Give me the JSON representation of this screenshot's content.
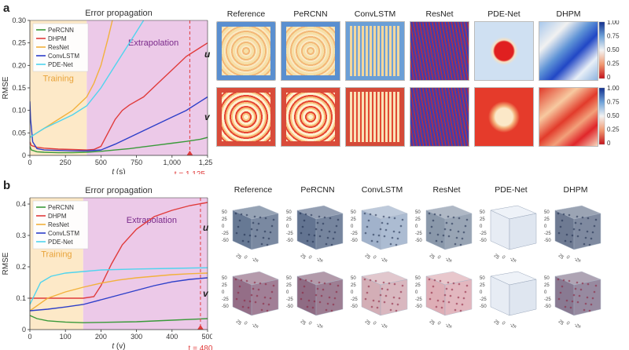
{
  "panel_a": {
    "letter": "a",
    "chart_title": "Error propagation",
    "region_training": "Training",
    "region_extrapolation": "Extrapolation",
    "marker_label": "t = 1,125",
    "columns": [
      "Reference",
      "PeRCNN",
      "ConvLSTM",
      "ResNet",
      "PDE-Net",
      "DHPM"
    ],
    "rows": [
      "u",
      "v"
    ],
    "colorbar_ticks": [
      "1.00",
      "0.75",
      "0.50",
      "0.25",
      "0"
    ]
  },
  "panel_b": {
    "letter": "b",
    "chart_title": "Error propagation",
    "region_training": "Training",
    "region_extrapolation": "Extrapolation",
    "marker_label": "t = 480",
    "columns": [
      "Reference",
      "PeRCNN",
      "ConvLSTM",
      "ResNet",
      "PDE-Net",
      "DHPM"
    ],
    "rows": [
      "u",
      "v"
    ],
    "axis_ticks": [
      "50",
      "25",
      "0",
      "-25",
      "-50"
    ]
  },
  "chart_data": [
    {
      "type": "line",
      "title": "Error propagation",
      "xlabel": "t (s)",
      "ylabel": "RMSE",
      "xlim": [
        0,
        1250
      ],
      "ylim": [
        0,
        0.3
      ],
      "xticks": [
        0,
        250,
        500,
        750,
        1000,
        1250
      ],
      "xtick_labels": [
        "0",
        "250",
        "500",
        "750",
        "1,000",
        "1,250"
      ],
      "yticks": [
        0,
        0.05,
        0.1,
        0.15,
        0.2,
        0.25,
        0.3
      ],
      "ytick_labels": [
        "0",
        "0.05",
        "0.10",
        "0.15",
        "0.20",
        "0.25",
        "0.30"
      ],
      "training_end": 400,
      "marker_x": 1125,
      "legend": "top-left",
      "series": [
        {
          "name": "PeRCNN",
          "color": "#3a9a3a",
          "x": [
            0,
            10,
            50,
            100,
            200,
            300,
            400,
            500,
            600,
            700,
            800,
            900,
            1000,
            1100,
            1200,
            1250
          ],
          "y": [
            0.02,
            0.012,
            0.008,
            0.007,
            0.006,
            0.006,
            0.007,
            0.009,
            0.012,
            0.015,
            0.019,
            0.023,
            0.027,
            0.031,
            0.036,
            0.04
          ]
        },
        {
          "name": "DHPM",
          "color": "#e03b3b",
          "x": [
            0,
            10,
            50,
            100,
            200,
            300,
            400,
            450,
            500,
            550,
            600,
            650,
            700,
            800,
            900,
            1000,
            1100,
            1200,
            1250
          ],
          "y": [
            0.03,
            0.022,
            0.018,
            0.016,
            0.014,
            0.013,
            0.012,
            0.013,
            0.02,
            0.05,
            0.08,
            0.1,
            0.112,
            0.13,
            0.16,
            0.19,
            0.22,
            0.24,
            0.25
          ]
        },
        {
          "name": "ResNet",
          "color": "#f2b13c",
          "x": [
            0,
            50,
            100,
            200,
            300,
            400,
            450,
            500,
            550,
            580
          ],
          "y": [
            0.04,
            0.05,
            0.06,
            0.08,
            0.1,
            0.13,
            0.16,
            0.2,
            0.26,
            0.3
          ]
        },
        {
          "name": "ConvLSTM",
          "color": "#2d3fc9",
          "x": [
            0,
            5,
            20,
            50,
            100,
            200,
            300,
            400,
            500,
            600,
            700,
            800,
            900,
            1000,
            1100,
            1200,
            1250
          ],
          "y": [
            0.12,
            0.08,
            0.03,
            0.015,
            0.012,
            0.011,
            0.01,
            0.01,
            0.012,
            0.025,
            0.04,
            0.055,
            0.07,
            0.085,
            0.1,
            0.12,
            0.13
          ]
        },
        {
          "name": "PDE-Net",
          "color": "#4fd4ee",
          "x": [
            0,
            50,
            100,
            200,
            300,
            400,
            500,
            600,
            700,
            800
          ],
          "y": [
            0.04,
            0.05,
            0.06,
            0.075,
            0.09,
            0.11,
            0.15,
            0.2,
            0.25,
            0.3
          ]
        }
      ]
    },
    {
      "type": "line",
      "title": "Error propagation",
      "xlabel": "t (v)",
      "ylabel": "RMSE",
      "xlim": [
        0,
        500
      ],
      "ylim": [
        0,
        0.42
      ],
      "xticks": [
        0,
        100,
        200,
        300,
        400,
        500
      ],
      "xtick_labels": [
        "0",
        "100",
        "200",
        "300",
        "400",
        "500"
      ],
      "yticks": [
        0,
        0.1,
        0.2,
        0.3,
        0.4
      ],
      "ytick_labels": [
        "0",
        "0.1",
        "0.2",
        "0.3",
        "0.4"
      ],
      "training_end": 150,
      "marker_x": 480,
      "legend": "top-left",
      "series": [
        {
          "name": "PeRCNN",
          "color": "#3a9a3a",
          "x": [
            0,
            20,
            50,
            100,
            150,
            200,
            300,
            400,
            500
          ],
          "y": [
            0.045,
            0.035,
            0.028,
            0.024,
            0.022,
            0.023,
            0.025,
            0.03,
            0.035
          ]
        },
        {
          "name": "DHPM",
          "color": "#e03b3b",
          "x": [
            0,
            50,
            100,
            150,
            180,
            200,
            230,
            260,
            300,
            350,
            400,
            450,
            500
          ],
          "y": [
            0.1,
            0.1,
            0.1,
            0.1,
            0.105,
            0.14,
            0.21,
            0.27,
            0.32,
            0.36,
            0.38,
            0.395,
            0.405
          ]
        },
        {
          "name": "ResNet",
          "color": "#f2b13c",
          "x": [
            0,
            50,
            100,
            150,
            200,
            250,
            300,
            350,
            400,
            450,
            500
          ],
          "y": [
            0.06,
            0.1,
            0.12,
            0.135,
            0.148,
            0.158,
            0.165,
            0.17,
            0.175,
            0.178,
            0.18
          ]
        },
        {
          "name": "ConvLSTM",
          "color": "#2d3fc9",
          "x": [
            0,
            50,
            100,
            150,
            200,
            250,
            300,
            350,
            400,
            450,
            500
          ],
          "y": [
            0.06,
            0.065,
            0.072,
            0.08,
            0.095,
            0.11,
            0.125,
            0.14,
            0.152,
            0.16,
            0.165
          ]
        },
        {
          "name": "PDE-Net",
          "color": "#4fd4ee",
          "x": [
            0,
            30,
            60,
            100,
            150,
            200,
            300,
            400,
            500
          ],
          "y": [
            0.08,
            0.15,
            0.17,
            0.18,
            0.185,
            0.19,
            0.193,
            0.195,
            0.197
          ]
        }
      ]
    }
  ]
}
